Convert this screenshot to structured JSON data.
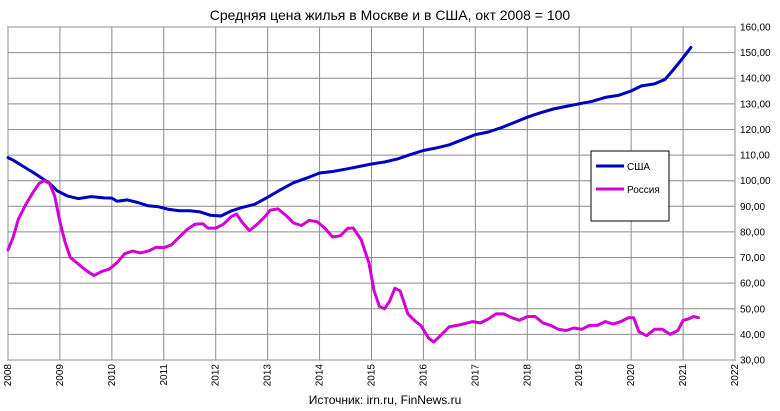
{
  "chart_data": {
    "type": "line",
    "title": "Средняя цена жилья в Москве и в США, окт 2008 = 100",
    "source": "Источник: irn.ru, FinNews.ru",
    "xlabel": "",
    "ylabel": "",
    "xlim": [
      2008,
      2022
    ],
    "ylim": [
      30,
      160
    ],
    "x_ticks": [
      "2008",
      "2009",
      "2010",
      "2011",
      "2012",
      "2013",
      "2014",
      "2015",
      "2016",
      "2017",
      "2018",
      "2019",
      "2020",
      "2021",
      "2022"
    ],
    "y_ticks": [
      "30,00",
      "40,00",
      "50,00",
      "60,00",
      "70,00",
      "80,00",
      "90,00",
      "100,00",
      "110,00",
      "120,00",
      "130,00",
      "140,00",
      "150,00",
      "160,00"
    ],
    "grid": true,
    "legend_position": "right",
    "series": [
      {
        "name": "США",
        "color": "#0000c0",
        "points": [
          [
            2008.0,
            109
          ],
          [
            2008.1,
            108
          ],
          [
            2008.3,
            105.5
          ],
          [
            2008.5,
            103
          ],
          [
            2008.65,
            101
          ],
          [
            2008.8,
            99
          ],
          [
            2008.95,
            96
          ],
          [
            2009.15,
            94
          ],
          [
            2009.35,
            93
          ],
          [
            2009.6,
            93.8
          ],
          [
            2009.85,
            93.3
          ],
          [
            2010.0,
            93.2
          ],
          [
            2010.1,
            92
          ],
          [
            2010.3,
            92.5
          ],
          [
            2010.5,
            91.5
          ],
          [
            2010.7,
            90.2
          ],
          [
            2010.9,
            89.8
          ],
          [
            2011.1,
            88.8
          ],
          [
            2011.3,
            88.3
          ],
          [
            2011.5,
            88.3
          ],
          [
            2011.7,
            87.8
          ],
          [
            2011.9,
            86.5
          ],
          [
            2012.1,
            86.2
          ],
          [
            2012.3,
            88.2
          ],
          [
            2012.5,
            89.5
          ],
          [
            2012.75,
            90.8
          ],
          [
            2013.0,
            93.5
          ],
          [
            2013.25,
            96.5
          ],
          [
            2013.5,
            99.2
          ],
          [
            2013.75,
            101
          ],
          [
            2014.0,
            103
          ],
          [
            2014.25,
            103.6
          ],
          [
            2014.5,
            104.5
          ],
          [
            2014.75,
            105.5
          ],
          [
            2015.0,
            106.5
          ],
          [
            2015.25,
            107.3
          ],
          [
            2015.5,
            108.5
          ],
          [
            2015.75,
            110.2
          ],
          [
            2016.0,
            111.8
          ],
          [
            2016.25,
            112.8
          ],
          [
            2016.5,
            114
          ],
          [
            2016.75,
            116
          ],
          [
            2017.0,
            118
          ],
          [
            2017.25,
            119
          ],
          [
            2017.5,
            120.7
          ],
          [
            2017.75,
            122.7
          ],
          [
            2018.0,
            124.8
          ],
          [
            2018.25,
            126.5
          ],
          [
            2018.5,
            128
          ],
          [
            2018.75,
            129
          ],
          [
            2019.0,
            130
          ],
          [
            2019.25,
            131
          ],
          [
            2019.5,
            132.5
          ],
          [
            2019.75,
            133.3
          ],
          [
            2020.0,
            135
          ],
          [
            2020.2,
            137
          ],
          [
            2020.45,
            137.8
          ],
          [
            2020.65,
            139.5
          ],
          [
            2020.8,
            143
          ],
          [
            2021.0,
            148
          ],
          [
            2021.15,
            152
          ]
        ]
      },
      {
        "name": "Россия",
        "color": "#d200d2",
        "points": [
          [
            2008.0,
            73
          ],
          [
            2008.1,
            78
          ],
          [
            2008.2,
            85
          ],
          [
            2008.35,
            91
          ],
          [
            2008.5,
            96
          ],
          [
            2008.6,
            99
          ],
          [
            2008.7,
            100
          ],
          [
            2008.8,
            99
          ],
          [
            2008.9,
            94
          ],
          [
            2009.0,
            84
          ],
          [
            2009.1,
            76
          ],
          [
            2009.2,
            70
          ],
          [
            2009.35,
            67.5
          ],
          [
            2009.5,
            65
          ],
          [
            2009.65,
            63
          ],
          [
            2009.8,
            64.5
          ],
          [
            2009.95,
            65.5
          ],
          [
            2010.1,
            68
          ],
          [
            2010.25,
            71.5
          ],
          [
            2010.4,
            72.5
          ],
          [
            2010.55,
            71.8
          ],
          [
            2010.7,
            72.5
          ],
          [
            2010.85,
            74
          ],
          [
            2011.0,
            73.8
          ],
          [
            2011.15,
            75
          ],
          [
            2011.3,
            78
          ],
          [
            2011.45,
            81
          ],
          [
            2011.6,
            83
          ],
          [
            2011.75,
            83.2
          ],
          [
            2011.85,
            81.5
          ],
          [
            2012.0,
            81.5
          ],
          [
            2012.15,
            83
          ],
          [
            2012.3,
            86
          ],
          [
            2012.4,
            87
          ],
          [
            2012.5,
            84
          ],
          [
            2012.65,
            80.5
          ],
          [
            2012.8,
            83
          ],
          [
            2012.95,
            86
          ],
          [
            2013.05,
            88.5
          ],
          [
            2013.2,
            89
          ],
          [
            2013.35,
            86.5
          ],
          [
            2013.5,
            83.5
          ],
          [
            2013.65,
            82.5
          ],
          [
            2013.8,
            84.5
          ],
          [
            2013.95,
            84
          ],
          [
            2014.1,
            81.5
          ],
          [
            2014.25,
            78
          ],
          [
            2014.4,
            78.5
          ],
          [
            2014.55,
            81.5
          ],
          [
            2014.65,
            81.5
          ],
          [
            2014.8,
            77
          ],
          [
            2014.95,
            68
          ],
          [
            2015.05,
            57
          ],
          [
            2015.15,
            51
          ],
          [
            2015.25,
            50
          ],
          [
            2015.35,
            53
          ],
          [
            2015.45,
            58
          ],
          [
            2015.55,
            57
          ],
          [
            2015.7,
            48
          ],
          [
            2015.85,
            45
          ],
          [
            2015.95,
            43.5
          ],
          [
            2016.1,
            38.5
          ],
          [
            2016.2,
            37
          ],
          [
            2016.35,
            40
          ],
          [
            2016.5,
            43
          ],
          [
            2016.65,
            43.5
          ],
          [
            2016.8,
            44.2
          ],
          [
            2016.95,
            45
          ],
          [
            2017.1,
            44.5
          ],
          [
            2017.25,
            46
          ],
          [
            2017.4,
            48
          ],
          [
            2017.55,
            48
          ],
          [
            2017.7,
            46.5
          ],
          [
            2017.85,
            45.5
          ],
          [
            2018.0,
            47
          ],
          [
            2018.15,
            47
          ],
          [
            2018.3,
            44.5
          ],
          [
            2018.45,
            43.5
          ],
          [
            2018.6,
            42
          ],
          [
            2018.75,
            41.5
          ],
          [
            2018.9,
            42.5
          ],
          [
            2019.05,
            42
          ],
          [
            2019.2,
            43.5
          ],
          [
            2019.35,
            43.5
          ],
          [
            2019.5,
            45
          ],
          [
            2019.65,
            44
          ],
          [
            2019.8,
            45
          ],
          [
            2019.95,
            46.5
          ],
          [
            2020.05,
            46.5
          ],
          [
            2020.15,
            41
          ],
          [
            2020.3,
            39.5
          ],
          [
            2020.45,
            42
          ],
          [
            2020.6,
            42
          ],
          [
            2020.75,
            40
          ],
          [
            2020.9,
            41.5
          ],
          [
            2021.0,
            45.5
          ],
          [
            2021.1,
            46
          ],
          [
            2021.2,
            47
          ],
          [
            2021.3,
            46.5
          ]
        ]
      }
    ]
  }
}
